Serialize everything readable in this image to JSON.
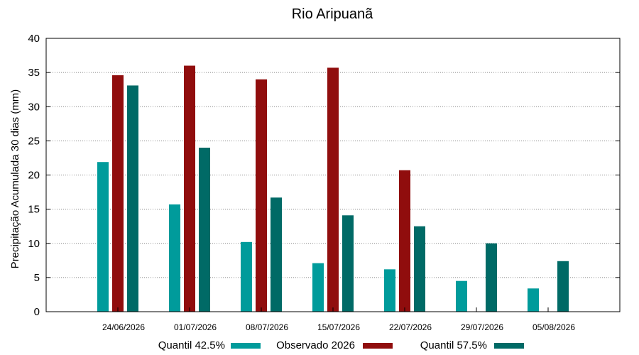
{
  "chart_data": {
    "type": "bar",
    "title": "Rio Aripuanã",
    "xlabel": "",
    "ylabel": "Precipitação Acumulada 30 dias (mm)",
    "ylim": [
      0,
      40
    ],
    "yticks": [
      0,
      5,
      10,
      15,
      20,
      25,
      30,
      35,
      40
    ],
    "grid": true,
    "legend_position": "bottom",
    "categories": [
      "24/06/2026",
      "01/07/2026",
      "08/07/2026",
      "15/07/2026",
      "22/07/2026",
      "29/07/2026",
      "05/08/2026"
    ],
    "series": [
      {
        "name": "Quantil 42.5%",
        "color": "#009b9b",
        "values": [
          21.9,
          15.7,
          10.2,
          7.1,
          6.2,
          4.5,
          3.4
        ]
      },
      {
        "name": "Observado 2026",
        "color": "#900d0d",
        "values": [
          34.6,
          36.0,
          34.0,
          35.7,
          20.7,
          null,
          null
        ]
      },
      {
        "name": "Quantil 57.5%",
        "color": "#006a66",
        "values": [
          33.1,
          24.0,
          16.7,
          14.1,
          12.5,
          10.0,
          7.4
        ]
      }
    ]
  }
}
